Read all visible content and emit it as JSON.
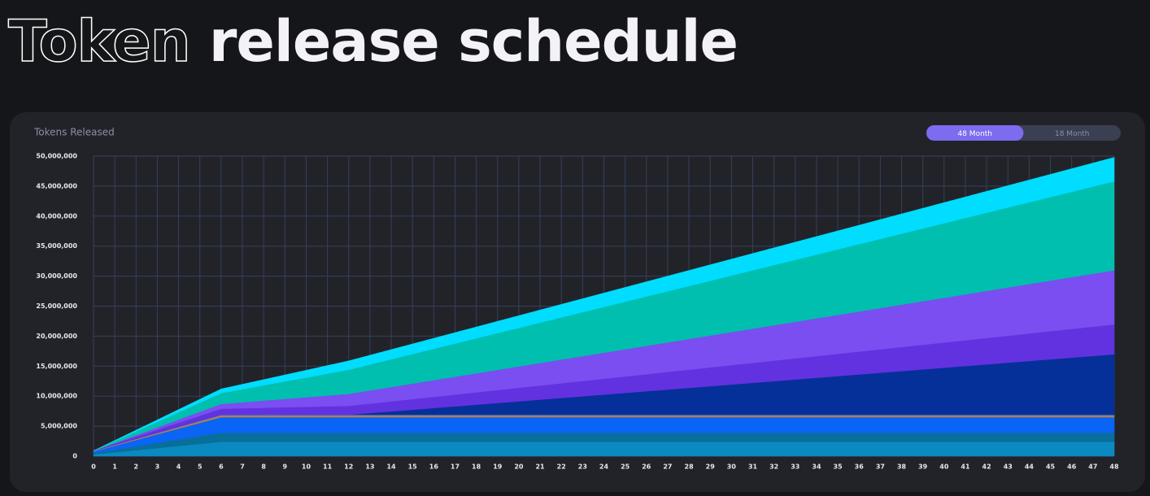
{
  "header": {
    "title_outline": "Token",
    "title_bold": "release schedule"
  },
  "toggle": {
    "options": [
      "48 Month",
      "18 Month"
    ],
    "active": 0
  },
  "chart_data": {
    "type": "stacked_area",
    "title": "Tokens Released",
    "x": [
      0,
      1,
      2,
      3,
      4,
      5,
      6,
      7,
      8,
      9,
      10,
      11,
      12,
      13,
      14,
      15,
      16,
      17,
      18,
      19,
      20,
      21,
      22,
      23,
      24,
      25,
      26,
      27,
      28,
      29,
      30,
      31,
      32,
      33,
      34,
      35,
      36,
      37,
      38,
      39,
      40,
      41,
      42,
      43,
      44,
      45,
      46,
      47,
      48
    ],
    "xlim": [
      0,
      48
    ],
    "xticks": [
      0,
      1,
      2,
      3,
      4,
      5,
      6,
      7,
      8,
      9,
      10,
      11,
      12,
      13,
      14,
      15,
      16,
      17,
      18,
      19,
      20,
      21,
      22,
      23,
      24,
      25,
      26,
      27,
      28,
      29,
      30,
      31,
      32,
      33,
      34,
      35,
      36,
      37,
      38,
      39,
      40,
      41,
      42,
      43,
      44,
      45,
      46,
      47,
      48
    ],
    "ylim": [
      0,
      50000000
    ],
    "yticks": [
      0,
      {
        "value": 5000000,
        "label": "5,000,000"
      },
      {
        "value": 10000000,
        "label": "10,000,000"
      },
      {
        "value": 15000000,
        "label": "15,000,000"
      },
      {
        "value": 20000000,
        "label": "20,000,000"
      },
      {
        "value": 25000000,
        "label": "25,000,000"
      },
      {
        "value": 30000000,
        "label": "30,000,000"
      },
      {
        "value": 35000000,
        "label": "35,000,000"
      },
      {
        "value": 40000000,
        "label": "40,000,000"
      },
      {
        "value": 45000000,
        "label": "45,000,000"
      },
      {
        "value": 50000000,
        "label": "50,000,000"
      }
    ],
    "grid": true,
    "series": [
      {
        "color": "#0a8ac0",
        "values": [
          300000,
          650000,
          1000000,
          1350000,
          1700000,
          2050000,
          2400000,
          2400000,
          2400000,
          2400000,
          2400000,
          2400000,
          2400000,
          2400000,
          2400000,
          2400000,
          2400000,
          2400000,
          2400000,
          2400000,
          2400000,
          2400000,
          2400000,
          2400000,
          2400000,
          2400000,
          2400000,
          2400000,
          2400000,
          2400000,
          2400000,
          2400000,
          2400000,
          2400000,
          2400000,
          2400000,
          2400000,
          2400000,
          2400000,
          2400000,
          2400000,
          2400000,
          2400000,
          2400000,
          2400000,
          2400000,
          2400000,
          2400000,
          2400000
        ]
      },
      {
        "color": "#086f9a",
        "values": [
          200000,
          420000,
          640000,
          860000,
          1080000,
          1300000,
          1500000,
          1500000,
          1500000,
          1500000,
          1500000,
          1500000,
          1500000,
          1500000,
          1500000,
          1500000,
          1500000,
          1500000,
          1500000,
          1500000,
          1500000,
          1500000,
          1500000,
          1500000,
          1500000,
          1500000,
          1500000,
          1500000,
          1500000,
          1500000,
          1500000,
          1500000,
          1500000,
          1500000,
          1500000,
          1500000,
          1500000,
          1500000,
          1500000,
          1500000,
          1500000,
          1500000,
          1500000,
          1500000,
          1500000,
          1500000,
          1500000,
          1500000,
          1500000
        ]
      },
      {
        "color": "#0a64f5",
        "values": [
          300000,
          680000,
          1060000,
          1440000,
          1820000,
          2200000,
          2600000,
          2600000,
          2600000,
          2600000,
          2600000,
          2600000,
          2600000,
          2600000,
          2600000,
          2600000,
          2600000,
          2600000,
          2600000,
          2600000,
          2600000,
          2600000,
          2600000,
          2600000,
          2600000,
          2600000,
          2600000,
          2600000,
          2600000,
          2600000,
          2600000,
          2600000,
          2600000,
          2600000,
          2600000,
          2600000,
          2600000,
          2600000,
          2600000,
          2600000,
          2600000,
          2600000,
          2600000,
          2600000,
          2600000,
          2600000,
          2600000,
          2600000,
          2600000
        ]
      },
      {
        "color": "#c9803a",
        "values": [
          50000,
          75000,
          100000,
          125000,
          150000,
          175000,
          200000,
          200000,
          200000,
          200000,
          200000,
          200000,
          200000,
          200000,
          200000,
          200000,
          200000,
          200000,
          200000,
          200000,
          200000,
          200000,
          200000,
          200000,
          200000,
          200000,
          200000,
          200000,
          200000,
          200000,
          200000,
          200000,
          200000,
          200000,
          200000,
          200000,
          200000,
          200000,
          200000,
          200000,
          200000,
          200000,
          200000,
          200000,
          200000,
          200000,
          200000,
          200000,
          200000
        ]
      },
      {
        "color": "#7a7f95",
        "values": [
          50000,
          75000,
          100000,
          125000,
          150000,
          175000,
          200000,
          200000,
          200000,
          200000,
          200000,
          200000,
          200000,
          200000,
          200000,
          200000,
          200000,
          200000,
          200000,
          200000,
          200000,
          200000,
          200000,
          200000,
          200000,
          200000,
          200000,
          200000,
          200000,
          200000,
          200000,
          200000,
          200000,
          200000,
          200000,
          200000,
          200000,
          200000,
          200000,
          200000,
          200000,
          200000,
          200000,
          200000,
          200000,
          200000,
          200000,
          200000,
          200000
        ]
      },
      {
        "color": "#05309a",
        "values": [
          0,
          0,
          0,
          0,
          0,
          0,
          0,
          0,
          0,
          0,
          0,
          0,
          0,
          280000,
          560000,
          840000,
          1120000,
          1400000,
          1680000,
          1960000,
          2240000,
          2520000,
          2800000,
          3080000,
          3360000,
          3640000,
          3920000,
          4200000,
          4480000,
          4760000,
          5040000,
          5320000,
          5600000,
          5880000,
          6160000,
          6440000,
          6720000,
          7000000,
          7280000,
          7560000,
          7840000,
          8120000,
          8400000,
          8680000,
          8960000,
          9240000,
          9520000,
          9800000,
          10080000
        ]
      },
      {
        "color": "#6232e0",
        "values": [
          0,
          170000,
          330000,
          500000,
          670000,
          830000,
          1000000,
          1080000,
          1160000,
          1240000,
          1320000,
          1400000,
          1480000,
          1577000,
          1674000,
          1771000,
          1868000,
          1965000,
          2062000,
          2159000,
          2256000,
          2353000,
          2450000,
          2547000,
          2644000,
          2741000,
          2838000,
          2935000,
          3032000,
          3129000,
          3226000,
          3323000,
          3420000,
          3517000,
          3614000,
          3711000,
          3808000,
          3905000,
          4002000,
          4099000,
          4196000,
          4293000,
          4390000,
          4487000,
          4584000,
          4681000,
          4778000,
          4875000,
          4972000
        ]
      },
      {
        "color": "#7a4ef0",
        "values": [
          0,
          130000,
          270000,
          400000,
          530000,
          670000,
          800000,
          1000000,
          1200000,
          1400000,
          1600000,
          1800000,
          2000000,
          2195000,
          2390000,
          2585000,
          2780000,
          2975000,
          3170000,
          3365000,
          3560000,
          3755000,
          3950000,
          4145000,
          4340000,
          4535000,
          4730000,
          4925000,
          5120000,
          5315000,
          5510000,
          5705000,
          5900000,
          6095000,
          6290000,
          6485000,
          6680000,
          6875000,
          7070000,
          7265000,
          7460000,
          7655000,
          7850000,
          8045000,
          8240000,
          8435000,
          8630000,
          8825000,
          9020000
        ]
      },
      {
        "color": "#00bfae",
        "values": [
          0,
          300000,
          600000,
          900000,
          1200000,
          1500000,
          1800000,
          2170000,
          2540000,
          2910000,
          3280000,
          3650000,
          4020000,
          4320000,
          4620000,
          4920000,
          5220000,
          5520000,
          5820000,
          6120000,
          6420000,
          6720000,
          7020000,
          7320000,
          7620000,
          7920000,
          8220000,
          8520000,
          8820000,
          9120000,
          9420000,
          9720000,
          10020000,
          10320000,
          10620000,
          10920000,
          11220000,
          11520000,
          11820000,
          12120000,
          12420000,
          12720000,
          13020000,
          13320000,
          13620000,
          13920000,
          14220000,
          14520000,
          14820000
        ]
      },
      {
        "color": "#00ddff",
        "values": [
          0,
          120000,
          230000,
          350000,
          470000,
          580000,
          700000,
          830000,
          960000,
          1090000,
          1220000,
          1350000,
          1480000,
          1550000,
          1620000,
          1690000,
          1760000,
          1830000,
          1900000,
          1970000,
          2040000,
          2110000,
          2180000,
          2250000,
          2320000,
          2390000,
          2460000,
          2530000,
          2600000,
          2670000,
          2740000,
          2810000,
          2880000,
          2950000,
          3020000,
          3090000,
          3160000,
          3230000,
          3300000,
          3370000,
          3440000,
          3510000,
          3580000,
          3650000,
          3720000,
          3790000,
          3860000,
          3930000,
          4000000
        ]
      }
    ]
  }
}
